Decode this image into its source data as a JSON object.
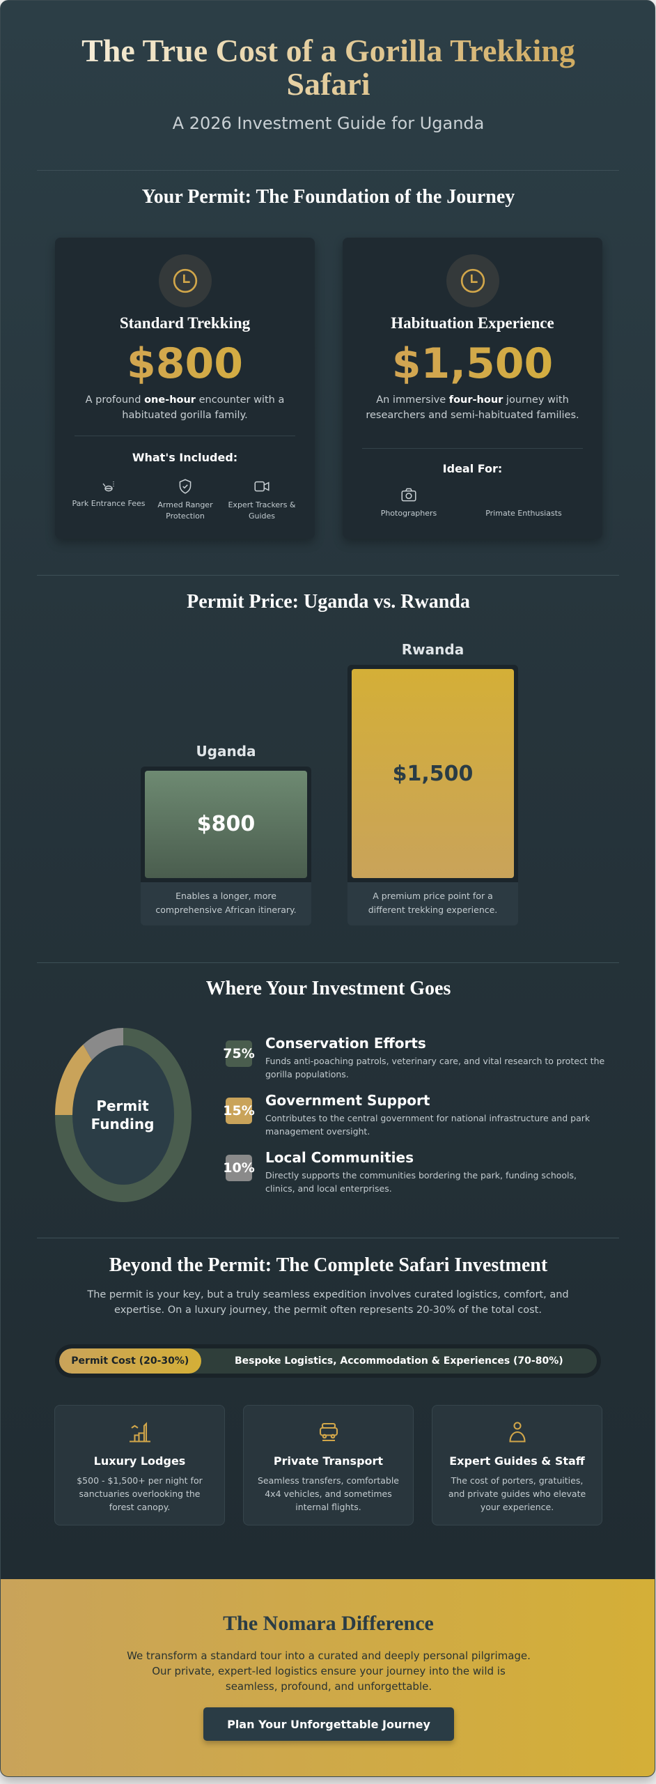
{
  "header": {
    "title": "The True Cost of a Gorilla Trekking Safari",
    "subtitle": "A 2026 Investment Guide for Uganda"
  },
  "permit": {
    "heading": "Your Permit: The Foundation of the Journey",
    "standard": {
      "icon": "clock-icon",
      "title": "Standard Trekking",
      "price": "$800",
      "desc_pre": "A profound ",
      "desc_bold": "one-hour",
      "desc_post": " encounter with a habituated gorilla family.",
      "sub": "What's Included:",
      "features": [
        {
          "icon": "park-icon",
          "label": "Park Entrance Fees"
        },
        {
          "icon": "shield-check-icon",
          "label": "Armed Ranger Protection"
        },
        {
          "icon": "video-camera-icon",
          "label": "Expert Trackers & Guides"
        }
      ]
    },
    "habituation": {
      "icon": "clock-icon",
      "title": "Habituation Experience",
      "price": "$1,500",
      "desc_pre": "An immersive ",
      "desc_bold": "four-hour",
      "desc_post": " journey with researchers and semi-habituated families.",
      "sub": "Ideal For:",
      "features": [
        {
          "icon": "camera-icon",
          "label": "Photographers"
        },
        {
          "icon": "",
          "label": "Primate Enthusiasts"
        }
      ]
    }
  },
  "comparison": {
    "heading": "Permit Price: Uganda vs. Rwanda",
    "chart_data": {
      "type": "bar",
      "categories": [
        "Uganda",
        "Rwanda"
      ],
      "values": [
        800,
        1500
      ],
      "value_labels": [
        "$800",
        "$1,500"
      ],
      "colors": [
        "#6b8770",
        "#d4af37"
      ]
    },
    "captions": [
      "Enables a longer, more comprehensive African itinerary.",
      "A premium price point for a different trekking experience."
    ]
  },
  "funding": {
    "heading": "Where Your Investment Goes",
    "center_label": "Permit Funding",
    "chart_data": {
      "type": "pie",
      "categories": [
        "Conservation Efforts",
        "Government Support",
        "Local Communities"
      ],
      "values": [
        75,
        15,
        10
      ],
      "colors": [
        "#4a5d4e",
        "#c9a35a",
        "#8a8a8a"
      ]
    },
    "items": [
      {
        "pct": "75%",
        "title": "Conservation Efforts",
        "desc": "Funds anti-poaching patrols, veterinary care, and vital research to protect the gorilla populations.",
        "color": "#4a5d4e"
      },
      {
        "pct": "15%",
        "title": "Government Support",
        "desc": "Contributes to the central government for national infrastructure and park management oversight.",
        "color": "#c9a35a"
      },
      {
        "pct": "10%",
        "title": "Local Communities",
        "desc": "Directly supports the communities bordering the park, funding schools, clinics, and local enterprises.",
        "color": "#8a8a8a"
      }
    ]
  },
  "beyond": {
    "heading": "Beyond the Permit: The Complete Safari Investment",
    "intro": "The permit is your key, but a truly seamless expedition involves curated logistics, comfort, and expertise. On a luxury journey, the permit often represents 20-30% of the total cost.",
    "split": {
      "permit_label": "Permit Cost (20-30%)",
      "rest_label": "Bespoke Logistics, Accommodation & Experiences (70-80%)",
      "permit_share_pct": 25
    },
    "cards": [
      {
        "icon": "lodge-icon",
        "title": "Luxury Lodges",
        "desc": "$500 - $1,500+ per night for sanctuaries overlooking the forest canopy."
      },
      {
        "icon": "vehicle-icon",
        "title": "Private Transport",
        "desc": "Seamless transfers, comfortable 4x4 vehicles, and sometimes internal flights."
      },
      {
        "icon": "person-icon",
        "title": "Expert Guides & Staff",
        "desc": "The cost of porters, gratuities, and private guides who elevate your experience."
      }
    ]
  },
  "footer": {
    "title": "The Nomara Difference",
    "text": "We transform a standard tour into a curated and deeply personal pilgrimage. Our private, expert-led logistics ensure your journey into the wild is seamless, profound, and unforgettable.",
    "cta": "Plan Your Unforgettable Journey"
  }
}
